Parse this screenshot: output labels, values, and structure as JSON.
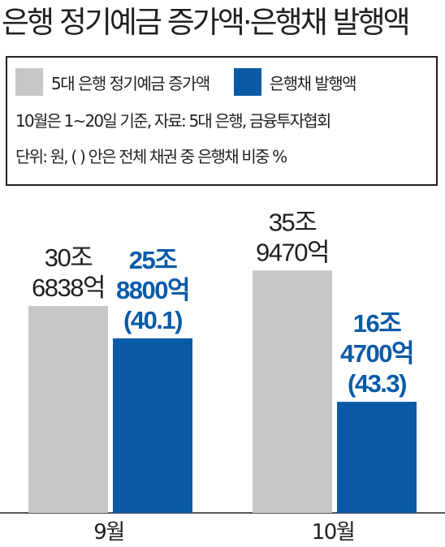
{
  "title": "은행 정기예금 증가액·은행채 발행액",
  "legend": {
    "items": [
      {
        "label": "5대 은행 정기예금 증가액",
        "color": "#c6c7c9"
      },
      {
        "label": "은행채 발행액",
        "color": "#0a5aa8"
      }
    ],
    "note1": "10월은 1~20일 기준, 자료: 5대 은행, 금융투자협회",
    "note2": "단위: 원, ( ) 안은 전체 채권 중 은행채 비중 %"
  },
  "chart_data": {
    "type": "bar",
    "categories": [
      "9월",
      "10월"
    ],
    "series": [
      {
        "name": "5대 은행 정기예금 증가액",
        "color": "#c6c7c9",
        "values": [
          306838,
          359470
        ],
        "labels": [
          [
            "30조",
            "6838억"
          ],
          [
            "35조",
            "9470억"
          ]
        ]
      },
      {
        "name": "은행채 발행액",
        "color": "#0a5aa8",
        "values": [
          258800,
          164700
        ],
        "labels": [
          [
            "25조",
            "8800억",
            "(40.1)"
          ],
          [
            "16조",
            "4700억",
            "(43.3)"
          ]
        ]
      }
    ],
    "unit": "억원",
    "ylim": [
      0,
      420000
    ]
  }
}
